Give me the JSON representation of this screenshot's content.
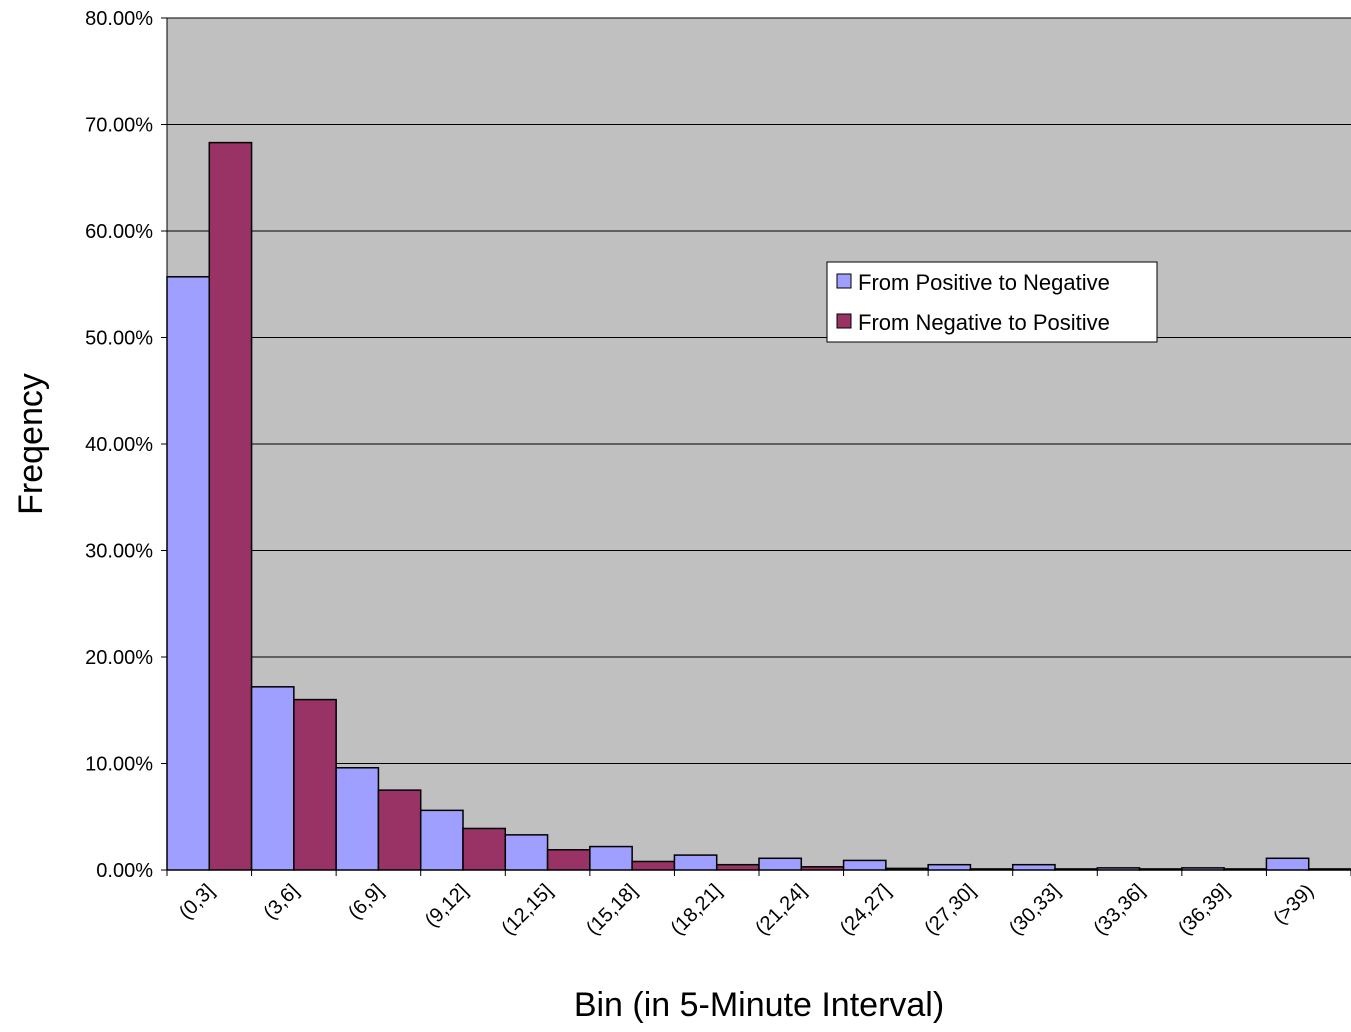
{
  "chart_data": {
    "type": "bar",
    "title": "",
    "xlabel": "Bin (in 5-Minute Interval)",
    "ylabel": "Freqency",
    "ylim": [
      0,
      80
    ],
    "y_tick_values": [
      0,
      10,
      20,
      30,
      40,
      50,
      60,
      70,
      80
    ],
    "y_tick_labels": [
      "0.00%",
      "10.00%",
      "20.00%",
      "30.00%",
      "40.00%",
      "50.00%",
      "60.00%",
      "70.00%",
      "80.00%"
    ],
    "categories": [
      "(0,3]",
      "(3,6]",
      "(6,9]",
      "(9,12]",
      "(12,15]",
      "(15,18]",
      "(18,21]",
      "(21,24]",
      "(24,27]",
      "(27,30]",
      "(30,33]",
      "(33,36]",
      "(36,39]",
      "(>39)"
    ],
    "series": [
      {
        "name": "From Positive to Negative",
        "color": "#9f9fff",
        "values": [
          55.7,
          17.2,
          9.6,
          5.6,
          3.3,
          2.2,
          1.4,
          1.1,
          0.9,
          0.5,
          0.5,
          0.2,
          0.2,
          1.1
        ]
      },
      {
        "name": "From Negative to Positive",
        "color": "#993366",
        "values": [
          68.3,
          16.0,
          7.5,
          3.9,
          1.9,
          0.8,
          0.5,
          0.3,
          0.15,
          0.1,
          0.1,
          0.1,
          0.1,
          0.1
        ]
      }
    ],
    "plot_background": "#c0c0c0",
    "grid": true,
    "legend_position": "upper-right"
  }
}
